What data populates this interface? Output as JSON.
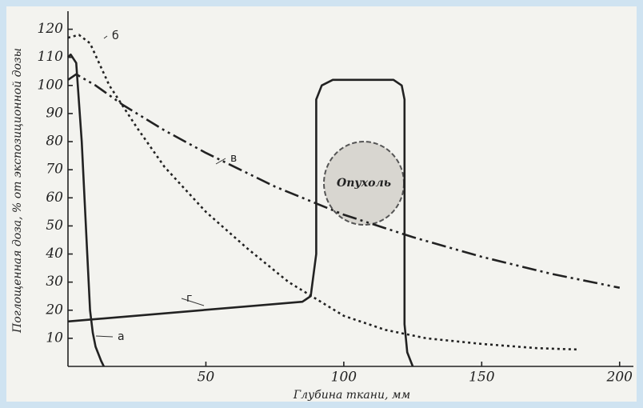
{
  "chart_data": {
    "type": "line",
    "ylabel": "Поглощенная доза, % от экспозиционной дозы",
    "xlabel": "Глубина ткани, мм",
    "annotation": "Опухоль",
    "xlim": [
      0,
      205
    ],
    "ylim": [
      0,
      125
    ],
    "xticks": [
      50,
      100,
      150,
      200
    ],
    "yticks": [
      10,
      20,
      30,
      40,
      50,
      60,
      70,
      80,
      90,
      100,
      110,
      120
    ],
    "series": [
      {
        "name": "а",
        "color": "#222",
        "dash": "none",
        "x": [
          0,
          1,
          3,
          5,
          7,
          8,
          9,
          10,
          12,
          13
        ],
        "values": [
          110,
          111,
          108,
          80,
          40,
          20,
          12,
          7,
          2,
          0
        ]
      },
      {
        "name": "б",
        "color": "#222",
        "dash": "3 4",
        "x": [
          0,
          4,
          8,
          15,
          25,
          35,
          50,
          65,
          80,
          90,
          100,
          115,
          130,
          150,
          170,
          185
        ],
        "values": [
          117,
          118,
          115,
          100,
          85,
          71,
          55,
          42,
          30,
          24,
          18,
          13,
          10,
          8,
          6.5,
          6
        ]
      },
      {
        "name": "в",
        "color": "#222",
        "dash": "18 5 3 5 3 5",
        "x": [
          0,
          3,
          10,
          20,
          35,
          50,
          75,
          100,
          125,
          150,
          175,
          200
        ],
        "values": [
          102,
          104,
          100,
          93,
          84,
          76,
          64,
          54,
          46,
          39,
          33,
          28
        ]
      },
      {
        "name": "г",
        "color": "#222",
        "dash": "none",
        "x": [
          0,
          85,
          88,
          90,
          90,
          92,
          96,
          118,
          121,
          122,
          122,
          123,
          125
        ],
        "values": [
          16,
          23,
          25,
          40,
          95,
          100,
          102,
          102,
          100,
          95,
          15,
          5,
          0
        ]
      }
    ]
  }
}
